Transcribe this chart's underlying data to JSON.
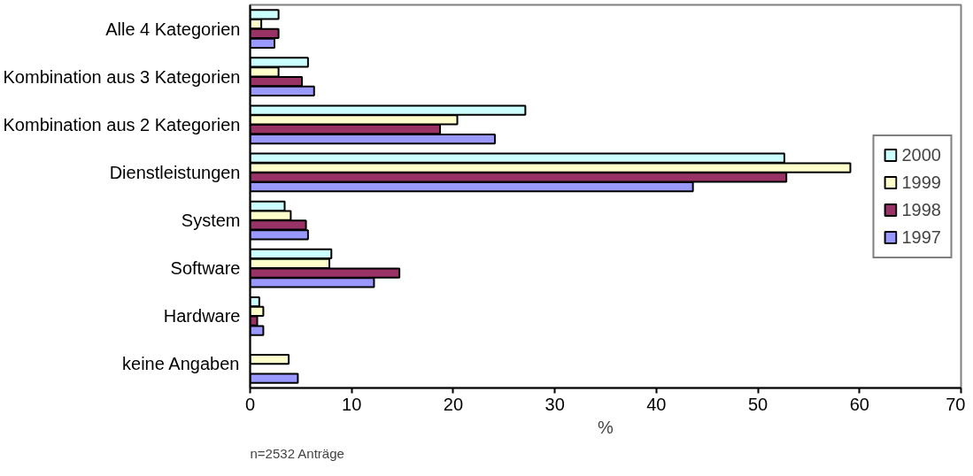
{
  "chart_data": {
    "type": "bar",
    "orientation": "horizontal",
    "xlabel": "%",
    "categories": [
      "Alle 4 Kategorien",
      "Kombination aus 3 Kategorien",
      "Kombination aus 2 Kategorien",
      "Dienstleistungen",
      "System",
      "Software",
      "Hardware",
      "keine Angaben"
    ],
    "series": [
      {
        "name": "2000",
        "color": "#ccffff",
        "values": [
          2.8,
          5.7,
          27.1,
          52.6,
          3.4,
          8.0,
          0.9,
          null
        ]
      },
      {
        "name": "1999",
        "color": "#ffffcc",
        "values": [
          1.1,
          2.8,
          20.4,
          59.1,
          4.0,
          7.8,
          1.3,
          3.8
        ]
      },
      {
        "name": "1998",
        "color": "#993366",
        "values": [
          2.8,
          5.1,
          18.7,
          52.8,
          5.5,
          14.7,
          0.7,
          null
        ]
      },
      {
        "name": "1997",
        "color": "#9999ff",
        "values": [
          2.4,
          6.3,
          24.1,
          43.6,
          5.7,
          12.2,
          1.3,
          4.7
        ]
      }
    ],
    "xlim": [
      0,
      70
    ],
    "xticks": [
      0,
      10,
      20,
      30,
      40,
      50,
      60,
      70
    ],
    "grid": false,
    "legend": "right",
    "annotations": [
      "n=2532 Anträge"
    ]
  }
}
